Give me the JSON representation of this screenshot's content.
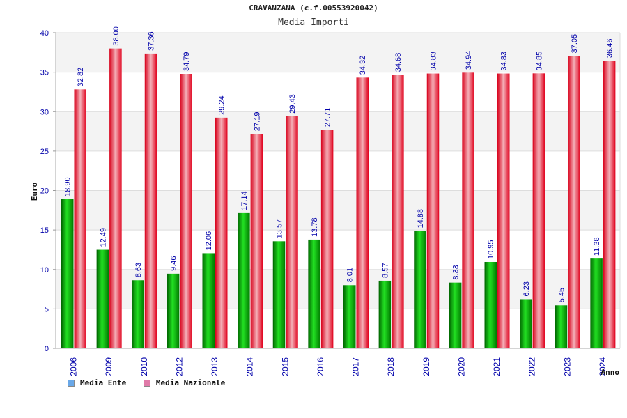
{
  "colors": {
    "ente": "#00b400",
    "nazionale": "#e8102a",
    "grid_band": "#f3f3f3",
    "axis_text": "#0000aa",
    "value_text": "#0000aa",
    "legend_ente": "#6aa8e8",
    "legend_nazionale": "#e07aa8"
  },
  "chart_data": {
    "type": "bar",
    "title": "CRAVANZANA (c.f.00553920042)",
    "subtitle": "Media Importi",
    "xlabel": "Anno",
    "ylabel": "Euro",
    "ylim": [
      0,
      40
    ],
    "yticks": [
      "0",
      "5",
      "10",
      "15",
      "20",
      "25",
      "30",
      "35",
      "40"
    ],
    "grid": true,
    "legend_position": "bottom-left",
    "categories": [
      "2006",
      "2009",
      "2010",
      "2012",
      "2013",
      "2014",
      "2015",
      "2016",
      "2017",
      "2018",
      "2019",
      "2020",
      "2021",
      "2022",
      "2023",
      "2024"
    ],
    "series": [
      {
        "name": "Media Ente",
        "values": [
          18.9,
          12.49,
          8.63,
          9.46,
          12.06,
          17.14,
          13.57,
          13.78,
          8.01,
          8.57,
          14.88,
          8.33,
          10.95,
          6.23,
          5.45,
          11.38
        ],
        "labels": [
          "18.90",
          "12.49",
          "8.63",
          "9.46",
          "12.06",
          "17.14",
          "13.57",
          "13.78",
          "8.01",
          "8.57",
          "14.88",
          "8.33",
          "10.95",
          "6.23",
          "5.45",
          "11.38"
        ]
      },
      {
        "name": "Media Nazionale",
        "values": [
          32.82,
          38.0,
          37.36,
          34.79,
          29.24,
          27.19,
          29.43,
          27.71,
          34.32,
          34.68,
          34.83,
          34.94,
          34.83,
          34.85,
          37.05,
          36.46
        ],
        "labels": [
          "32.82",
          "38.00",
          "37.36",
          "34.79",
          "29.24",
          "27.19",
          "29.43",
          "27.71",
          "34.32",
          "34.68",
          "34.83",
          "34.94",
          "34.83",
          "34.85",
          "37.05",
          "36.46"
        ]
      }
    ]
  },
  "legend": {
    "items": [
      {
        "label": "Media Ente"
      },
      {
        "label": "Media Nazionale"
      }
    ]
  }
}
